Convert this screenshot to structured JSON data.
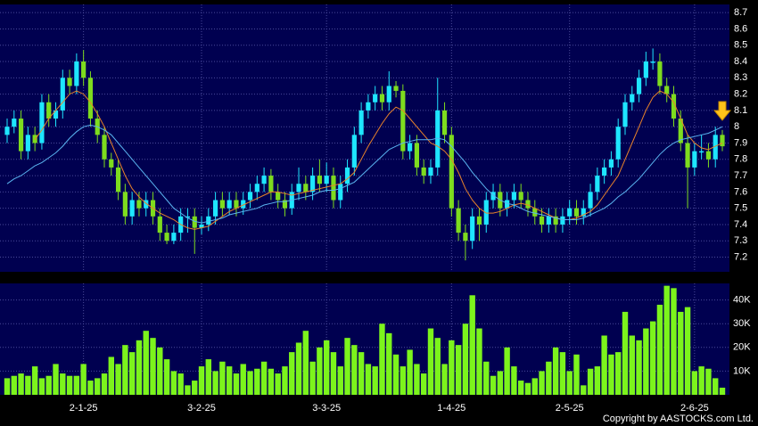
{
  "chart_data": {
    "type": "candlestick",
    "categories": [
      null,
      null,
      null,
      null,
      null,
      null,
      null,
      null,
      null,
      null,
      null,
      "2-1-25",
      null,
      null,
      null,
      null,
      null,
      null,
      null,
      null,
      null,
      null,
      null,
      null,
      null,
      null,
      null,
      null,
      "3-2-25",
      null,
      null,
      null,
      null,
      null,
      null,
      null,
      null,
      null,
      null,
      null,
      null,
      null,
      null,
      null,
      null,
      null,
      "3-3-25",
      null,
      null,
      null,
      null,
      null,
      null,
      null,
      null,
      null,
      null,
      null,
      null,
      null,
      null,
      null,
      null,
      null,
      "1-4-25",
      null,
      null,
      null,
      null,
      null,
      null,
      null,
      null,
      null,
      null,
      null,
      null,
      null,
      null,
      null,
      null,
      "2-5-25",
      null,
      null,
      null,
      null,
      null,
      null,
      null,
      null,
      null,
      null,
      null,
      null,
      null,
      null,
      null,
      null,
      null,
      "2-6-25",
      null,
      null,
      null,
      null
    ],
    "open": [
      7.95,
      8.0,
      8.05,
      7.85,
      7.95,
      7.9,
      8.15,
      8.05,
      8.1,
      8.3,
      8.25,
      8.4,
      8.3,
      8.05,
      7.95,
      7.8,
      7.75,
      7.6,
      7.45,
      7.55,
      7.5,
      7.55,
      7.45,
      7.35,
      7.3,
      7.35,
      7.45,
      7.45,
      7.38,
      7.4,
      7.45,
      7.55,
      7.5,
      7.55,
      7.5,
      7.55,
      7.6,
      7.65,
      7.7,
      7.6,
      7.55,
      7.5,
      7.6,
      7.65,
      7.6,
      7.7,
      7.65,
      7.7,
      7.55,
      7.65,
      7.75,
      7.95,
      8.1,
      8.15,
      8.2,
      8.15,
      8.25,
      8.22,
      7.85,
      7.9,
      7.75,
      7.7,
      7.75,
      8.1,
      7.95,
      7.5,
      7.35,
      7.3,
      7.45,
      7.4,
      7.55,
      7.6,
      7.5,
      7.55,
      7.6,
      7.55,
      7.5,
      7.45,
      7.4,
      7.45,
      7.4,
      7.45,
      7.5,
      7.45,
      7.5,
      7.6,
      7.7,
      7.75,
      7.8,
      8.0,
      8.15,
      8.2,
      8.3,
      8.4,
      8.4,
      8.25,
      8.2,
      8.05,
      7.9,
      7.75,
      7.85,
      7.85,
      7.8,
      7.95
    ],
    "high": [
      8.05,
      8.1,
      8.1,
      8.0,
      8.0,
      8.2,
      8.2,
      8.15,
      8.35,
      8.35,
      8.45,
      8.47,
      8.34,
      8.1,
      8.0,
      7.84,
      7.8,
      7.65,
      7.6,
      7.6,
      7.6,
      7.6,
      7.5,
      7.4,
      7.4,
      7.5,
      7.5,
      7.5,
      7.45,
      7.5,
      7.6,
      7.6,
      7.6,
      7.6,
      7.6,
      7.65,
      7.7,
      7.75,
      7.74,
      7.65,
      7.6,
      7.65,
      7.75,
      7.7,
      7.75,
      7.8,
      7.78,
      7.75,
      7.7,
      7.8,
      8.0,
      8.15,
      8.2,
      8.25,
      8.25,
      8.34,
      8.28,
      8.26,
      7.95,
      7.95,
      7.8,
      7.8,
      8.3,
      8.15,
      8.0,
      7.55,
      7.4,
      7.5,
      7.5,
      7.6,
      7.65,
      7.65,
      7.6,
      7.65,
      7.65,
      7.6,
      7.55,
      7.5,
      7.5,
      7.5,
      7.5,
      7.55,
      7.55,
      7.55,
      7.65,
      7.75,
      7.8,
      7.85,
      8.05,
      8.2,
      8.25,
      8.35,
      8.46,
      8.48,
      8.45,
      8.3,
      8.25,
      8.1,
      7.95,
      7.9,
      7.95,
      7.9,
      8.0,
      7.98
    ],
    "low": [
      7.9,
      7.96,
      7.8,
      7.8,
      7.85,
      7.86,
      8.0,
      8.0,
      8.05,
      8.2,
      8.2,
      8.25,
      8.0,
      7.9,
      7.75,
      7.7,
      7.55,
      7.4,
      7.4,
      7.45,
      7.45,
      7.4,
      7.3,
      7.28,
      7.28,
      7.3,
      7.35,
      7.22,
      7.34,
      7.36,
      7.4,
      7.45,
      7.46,
      7.45,
      7.46,
      7.5,
      7.55,
      7.6,
      7.55,
      7.5,
      7.45,
      7.46,
      7.55,
      7.55,
      7.55,
      7.6,
      7.6,
      7.5,
      7.5,
      7.6,
      7.7,
      7.9,
      8.05,
      8.1,
      8.1,
      8.1,
      8.18,
      7.8,
      7.8,
      7.7,
      7.65,
      7.65,
      7.7,
      7.9,
      7.45,
      7.3,
      7.18,
      7.25,
      7.3,
      7.35,
      7.5,
      7.45,
      7.45,
      7.5,
      7.5,
      7.45,
      7.4,
      7.35,
      7.35,
      7.35,
      7.35,
      7.4,
      7.4,
      7.4,
      7.45,
      7.55,
      7.65,
      7.7,
      7.75,
      7.95,
      8.1,
      8.15,
      8.25,
      8.35,
      8.2,
      8.15,
      8.0,
      7.85,
      7.5,
      7.7,
      7.8,
      7.75,
      7.75,
      7.85
    ],
    "close": [
      8.0,
      8.05,
      7.85,
      7.95,
      7.9,
      8.15,
      8.05,
      8.1,
      8.3,
      8.25,
      8.4,
      8.3,
      8.05,
      7.95,
      7.8,
      7.75,
      7.6,
      7.45,
      7.55,
      7.5,
      7.55,
      7.45,
      7.35,
      7.3,
      7.35,
      7.45,
      7.45,
      7.38,
      7.4,
      7.45,
      7.55,
      7.5,
      7.55,
      7.5,
      7.55,
      7.6,
      7.65,
      7.7,
      7.6,
      7.55,
      7.5,
      7.6,
      7.65,
      7.6,
      7.7,
      7.65,
      7.7,
      7.55,
      7.65,
      7.75,
      7.95,
      8.1,
      8.15,
      8.2,
      8.15,
      8.25,
      8.22,
      7.85,
      7.9,
      7.75,
      7.7,
      7.75,
      8.1,
      7.95,
      7.5,
      7.35,
      7.3,
      7.45,
      7.4,
      7.55,
      7.6,
      7.5,
      7.55,
      7.6,
      7.55,
      7.5,
      7.45,
      7.4,
      7.45,
      7.4,
      7.45,
      7.5,
      7.45,
      7.5,
      7.6,
      7.7,
      7.75,
      7.8,
      8.0,
      8.15,
      8.2,
      8.3,
      8.4,
      8.4,
      8.25,
      8.2,
      8.05,
      7.9,
      7.75,
      7.85,
      7.85,
      7.8,
      7.95,
      7.88
    ],
    "up_color": "#1ee6ff",
    "down_color": "#7edc1e",
    "ylim": [
      7.11,
      8.75
    ],
    "yticks": [
      7.2,
      7.3,
      7.4,
      7.5,
      7.6,
      7.7,
      7.8,
      7.9,
      8,
      8.1,
      8.2,
      8.3,
      8.4,
      8.5,
      8.6,
      8.7
    ],
    "grid": true,
    "moving_averages": [
      {
        "color": "#e8822a",
        "values": [
          null,
          null,
          null,
          null,
          7.92,
          7.98,
          8.05,
          8.1,
          8.15,
          8.2,
          8.22,
          8.2,
          8.15,
          8.08,
          8.0,
          7.9,
          7.8,
          7.7,
          7.62,
          7.57,
          7.53,
          7.5,
          7.47,
          7.45,
          7.43,
          7.4,
          7.38,
          7.37,
          7.38,
          7.39,
          7.42,
          7.45,
          7.48,
          7.5,
          7.52,
          7.54,
          7.56,
          7.58,
          7.6,
          7.6,
          7.59,
          7.58,
          7.59,
          7.6,
          7.61,
          7.62,
          7.63,
          7.64,
          7.65,
          7.68,
          7.72,
          7.8,
          7.88,
          7.95,
          8.02,
          8.08,
          8.12,
          8.1,
          8.05,
          8.0,
          7.95,
          7.9,
          7.88,
          7.85,
          7.8,
          7.72,
          7.62,
          7.55,
          7.5,
          7.47,
          7.47,
          7.48,
          7.5,
          7.52,
          7.53,
          7.52,
          7.5,
          7.48,
          7.46,
          7.44,
          7.43,
          7.43,
          7.44,
          7.46,
          7.48,
          7.52,
          7.58,
          7.64,
          7.7,
          7.8,
          7.9,
          8.0,
          8.1,
          8.18,
          8.22,
          8.2,
          8.15,
          8.05,
          7.95,
          7.9,
          7.87,
          7.86,
          7.88,
          7.9
        ]
      },
      {
        "color": "#5ab4f0",
        "values": [
          7.65,
          7.68,
          7.7,
          7.73,
          7.76,
          7.78,
          7.81,
          7.84,
          7.88,
          7.93,
          7.97,
          8.0,
          8.01,
          8.0,
          7.98,
          7.95,
          7.9,
          7.85,
          7.8,
          7.75,
          7.7,
          7.65,
          7.6,
          7.55,
          7.5,
          7.47,
          7.44,
          7.42,
          7.41,
          7.42,
          7.43,
          7.44,
          7.46,
          7.47,
          7.48,
          7.49,
          7.5,
          7.52,
          7.53,
          7.54,
          7.54,
          7.55,
          7.56,
          7.57,
          7.58,
          7.6,
          7.61,
          7.61,
          7.62,
          7.64,
          7.66,
          7.7,
          7.74,
          7.78,
          7.82,
          7.86,
          7.88,
          7.9,
          7.91,
          7.92,
          7.92,
          7.92,
          7.93,
          7.92,
          7.88,
          7.83,
          7.78,
          7.72,
          7.67,
          7.62,
          7.58,
          7.55,
          7.53,
          7.52,
          7.5,
          7.48,
          7.47,
          7.46,
          7.45,
          7.44,
          7.43,
          7.43,
          7.43,
          7.44,
          7.46,
          7.48,
          7.5,
          7.53,
          7.57,
          7.6,
          7.64,
          7.68,
          7.73,
          7.78,
          7.83,
          7.87,
          7.9,
          7.92,
          7.93,
          7.94,
          7.95,
          7.96,
          7.98,
          8.0
        ]
      }
    ],
    "volume": {
      "type": "bar",
      "color": "#7cf41c",
      "values": [
        7,
        8,
        9,
        8,
        12,
        7,
        8,
        13,
        9,
        8,
        8,
        13,
        6,
        7,
        9,
        16,
        13,
        21,
        18,
        23,
        27,
        24,
        20,
        15,
        10,
        9,
        4,
        6,
        12,
        15,
        10,
        14,
        12,
        9,
        13,
        10,
        11,
        14,
        11,
        9,
        12,
        18,
        22,
        27,
        14,
        20,
        23,
        18,
        12,
        24,
        21,
        18,
        13,
        12,
        30,
        26,
        17,
        12,
        19,
        13,
        9,
        28,
        24,
        13,
        23,
        21,
        30,
        42,
        28,
        14,
        8,
        10,
        20,
        12,
        6,
        5,
        7,
        10,
        14,
        20,
        18,
        10,
        17,
        4,
        11,
        12,
        25,
        17,
        18,
        35,
        25,
        23,
        28,
        31,
        38,
        46,
        45,
        35,
        37,
        10,
        12,
        11,
        7,
        3
      ],
      "ylim": [
        0,
        47
      ],
      "yticks": [
        {
          "value": 10,
          "label": "10K"
        },
        {
          "value": 20,
          "label": "20K"
        },
        {
          "value": 30,
          "label": "30K"
        },
        {
          "value": 40,
          "label": "40K"
        }
      ]
    },
    "copyright": "Copyright by AASTOCKS.com Ltd."
  }
}
